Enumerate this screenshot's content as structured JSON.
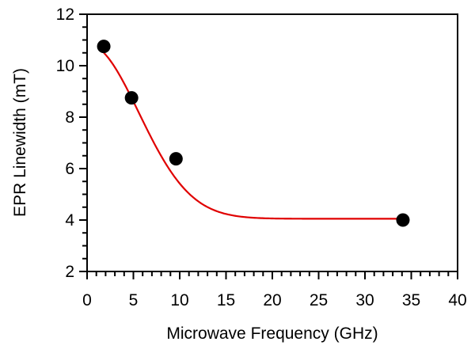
{
  "chart_data": {
    "type": "scatter",
    "title": "",
    "xlabel": "Microwave Frequency (GHz)",
    "ylabel": "EPR Linewidth (mT)",
    "xlim": [
      0,
      40
    ],
    "ylim": [
      2,
      12
    ],
    "grid": false,
    "legend": "none",
    "x_ticks": [
      0,
      5,
      10,
      15,
      20,
      25,
      30,
      35,
      40
    ],
    "y_ticks": [
      2,
      4,
      6,
      8,
      10,
      12
    ],
    "x_minor_step": 1,
    "y_minor_step": 0.5,
    "series": [
      {
        "type": "scatter",
        "color": "#000000",
        "x": [
          1.8,
          4.8,
          9.6,
          34.1
        ],
        "y": [
          10.75,
          8.75,
          6.38,
          4.0
        ]
      },
      {
        "type": "line",
        "color": "#e00000",
        "model": "gaussian_plus_offset",
        "params": {
          "offset": 4.05,
          "amplitude": 6.8,
          "width": 7.9
        },
        "x_range": [
          1.8,
          34.1
        ]
      }
    ]
  }
}
